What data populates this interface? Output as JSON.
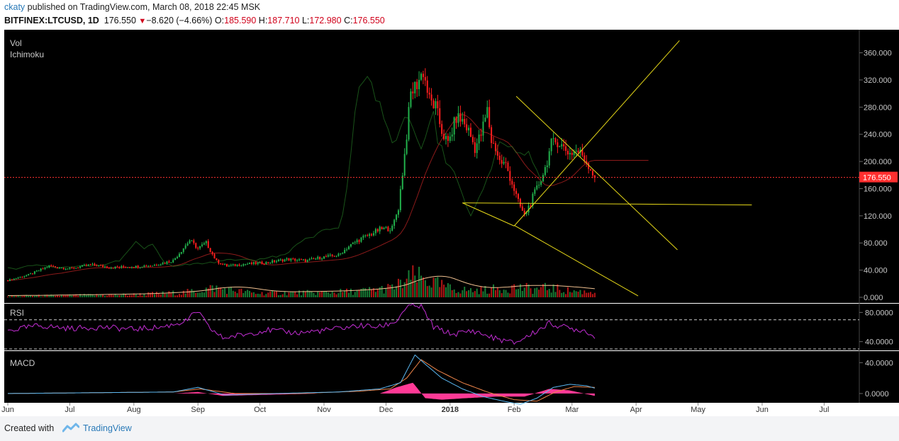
{
  "header": {
    "author": "ckaty",
    "published_text": "published on TradingView.com, March 08, 2018 22:45 MSK",
    "symbol": "BITFINEX:LTCUSD, 1D",
    "last": "176.550",
    "change": "−8.620 (−4.66%)",
    "o_label": "O:",
    "o_value": "185.590",
    "h_label": "H:",
    "h_value": "187.710",
    "l_label": "L:",
    "l_value": "172.980",
    "c_label": "C:",
    "c_value": "176.550"
  },
  "footer": {
    "created_with": "Created with",
    "brand": "TradingView"
  },
  "colors": {
    "background": "#000000",
    "up": "#22b14c",
    "down": "#ff1e1e",
    "trendline": "#e6d818",
    "rsi": "#c22dd3",
    "macd": "#5bb8f2",
    "signal": "#f0864a",
    "histogram": "#ff3a96",
    "price_line": "#ff3030",
    "ichimoku_lead": "#2f6b1c",
    "ichimoku_base": "#8b1a1a"
  },
  "chart_data": {
    "type": "candlestick",
    "title": "",
    "indicators": [
      "Vol",
      "Ichimoku"
    ],
    "last_price": 176.55,
    "last_price_label": "176.550",
    "price_ylim": [
      0,
      380
    ],
    "price_ticks": [
      0,
      40,
      80,
      120,
      160,
      200,
      240,
      280,
      320,
      360
    ],
    "price_tick_labels": [
      "0.000",
      "40.000",
      "80.000",
      "120.000",
      "160.000",
      "200.000",
      "240.000",
      "280.000",
      "320.000",
      "360.000"
    ],
    "x_labels": [
      "Jun",
      "Jul",
      "Aug",
      "Sep",
      "Oct",
      "Nov",
      "Dec",
      "2018",
      "Feb",
      "Mar",
      "Apr",
      "May",
      "Jun",
      "Jul"
    ],
    "x_label_days": [
      0,
      30,
      61,
      92,
      122,
      153,
      183,
      214,
      245,
      273,
      304,
      334,
      365,
      395
    ],
    "price_series": [
      [
        0,
        25
      ],
      [
        10,
        33
      ],
      [
        20,
        46
      ],
      [
        30,
        42
      ],
      [
        40,
        48
      ],
      [
        50,
        44
      ],
      [
        60,
        45
      ],
      [
        70,
        47
      ],
      [
        80,
        54
      ],
      [
        88,
        84
      ],
      [
        92,
        72
      ],
      [
        96,
        80
      ],
      [
        101,
        53
      ],
      [
        106,
        46
      ],
      [
        115,
        49
      ],
      [
        125,
        51
      ],
      [
        135,
        56
      ],
      [
        145,
        54
      ],
      [
        152,
        59
      ],
      [
        160,
        62
      ],
      [
        165,
        75
      ],
      [
        170,
        85
      ],
      [
        175,
        92
      ],
      [
        180,
        100
      ],
      [
        186,
        102
      ],
      [
        189,
        132
      ],
      [
        192,
        210
      ],
      [
        195,
        300
      ],
      [
        198,
        315
      ],
      [
        201,
        333
      ],
      [
        204,
        290
      ],
      [
        207,
        280
      ],
      [
        210,
        245
      ],
      [
        213,
        225
      ],
      [
        217,
        265
      ],
      [
        220,
        260
      ],
      [
        223,
        245
      ],
      [
        226,
        220
      ],
      [
        229,
        240
      ],
      [
        232,
        275
      ],
      [
        234,
        230
      ],
      [
        236,
        220
      ],
      [
        238,
        200
      ],
      [
        241,
        195
      ],
      [
        244,
        168
      ],
      [
        247,
        140
      ],
      [
        250,
        120
      ],
      [
        253,
        140
      ],
      [
        256,
        160
      ],
      [
        260,
        190
      ],
      [
        263,
        225
      ],
      [
        266,
        230
      ],
      [
        269,
        220
      ],
      [
        272,
        212
      ],
      [
        275,
        216
      ],
      [
        278,
        210
      ],
      [
        281,
        195
      ],
      [
        284,
        176.55
      ]
    ],
    "volume_series": [
      [
        0,
        2
      ],
      [
        30,
        3
      ],
      [
        60,
        4
      ],
      [
        85,
        7
      ],
      [
        92,
        10
      ],
      [
        100,
        14
      ],
      [
        120,
        6
      ],
      [
        150,
        7
      ],
      [
        170,
        9
      ],
      [
        180,
        12
      ],
      [
        186,
        14
      ],
      [
        192,
        22
      ],
      [
        196,
        30
      ],
      [
        200,
        28
      ],
      [
        205,
        22
      ],
      [
        215,
        12
      ],
      [
        225,
        10
      ],
      [
        235,
        12
      ],
      [
        245,
        15
      ],
      [
        255,
        12
      ],
      [
        262,
        14
      ],
      [
        270,
        10
      ],
      [
        280,
        8
      ],
      [
        284,
        9
      ]
    ],
    "trendlines": [
      {
        "name": "Upper descending",
        "from": [
          246,
          296
        ],
        "to": [
          324,
          70
        ]
      },
      {
        "name": "Lower descending",
        "from": [
          245,
          106
        ],
        "to": [
          305,
          2
        ]
      },
      {
        "name": "Horizontal support",
        "from": [
          220,
          139
        ],
        "to": [
          360,
          136
        ]
      },
      {
        "name": "Rising line",
        "from": [
          245,
          105
        ],
        "to": [
          325,
          378
        ]
      },
      {
        "name": "Connector",
        "from": [
          220,
          139
        ],
        "to": [
          245,
          105
        ]
      }
    ],
    "rsi": {
      "label": "RSI",
      "ylim": [
        28,
        92
      ],
      "levels": [
        70,
        30
      ],
      "ticks": [
        40,
        80
      ],
      "tick_labels": [
        "40.0000",
        "80.0000"
      ],
      "points": [
        [
          0,
          55
        ],
        [
          15,
          62
        ],
        [
          30,
          58
        ],
        [
          45,
          60
        ],
        [
          60,
          57
        ],
        [
          75,
          60
        ],
        [
          86,
          68
        ],
        [
          92,
          82
        ],
        [
          97,
          60
        ],
        [
          104,
          45
        ],
        [
          115,
          50
        ],
        [
          125,
          56
        ],
        [
          140,
          52
        ],
        [
          155,
          56
        ],
        [
          170,
          62
        ],
        [
          180,
          60
        ],
        [
          188,
          68
        ],
        [
          193,
          88
        ],
        [
          200,
          88
        ],
        [
          206,
          60
        ],
        [
          215,
          50
        ],
        [
          225,
          55
        ],
        [
          235,
          45
        ],
        [
          245,
          38
        ],
        [
          252,
          48
        ],
        [
          262,
          65
        ],
        [
          272,
          58
        ],
        [
          280,
          55
        ],
        [
          284,
          45
        ]
      ]
    },
    "macd": {
      "label": "MACD",
      "ylim": [
        -12,
        55
      ],
      "ticks": [
        0,
        40
      ],
      "tick_labels": [
        "0.0000",
        "40.0000"
      ],
      "macd_points": [
        [
          0,
          0
        ],
        [
          40,
          1
        ],
        [
          80,
          2
        ],
        [
          92,
          8
        ],
        [
          105,
          -2
        ],
        [
          130,
          0
        ],
        [
          160,
          2
        ],
        [
          180,
          6
        ],
        [
          190,
          14
        ],
        [
          197,
          50
        ],
        [
          202,
          38
        ],
        [
          210,
          20
        ],
        [
          220,
          6
        ],
        [
          230,
          -4
        ],
        [
          240,
          -10
        ],
        [
          248,
          -14
        ],
        [
          256,
          -6
        ],
        [
          264,
          8
        ],
        [
          272,
          12
        ],
        [
          280,
          10
        ],
        [
          284,
          7
        ]
      ],
      "signal_points": [
        [
          0,
          0
        ],
        [
          40,
          1
        ],
        [
          80,
          2
        ],
        [
          93,
          6
        ],
        [
          110,
          0
        ],
        [
          140,
          0
        ],
        [
          170,
          3
        ],
        [
          185,
          6
        ],
        [
          193,
          20
        ],
        [
          200,
          44
        ],
        [
          208,
          30
        ],
        [
          220,
          14
        ],
        [
          232,
          2
        ],
        [
          245,
          -8
        ],
        [
          256,
          -10
        ],
        [
          265,
          2
        ],
        [
          274,
          9
        ],
        [
          284,
          8
        ]
      ],
      "histogram_points": [
        [
          0,
          0
        ],
        [
          50,
          0
        ],
        [
          80,
          0
        ],
        [
          92,
          2
        ],
        [
          104,
          -3
        ],
        [
          150,
          0
        ],
        [
          180,
          0
        ],
        [
          188,
          8
        ],
        [
          196,
          14
        ],
        [
          202,
          -6
        ],
        [
          210,
          -8
        ],
        [
          222,
          -6
        ],
        [
          236,
          -4
        ],
        [
          250,
          -4
        ],
        [
          262,
          6
        ],
        [
          272,
          4
        ],
        [
          284,
          -3
        ]
      ]
    }
  }
}
